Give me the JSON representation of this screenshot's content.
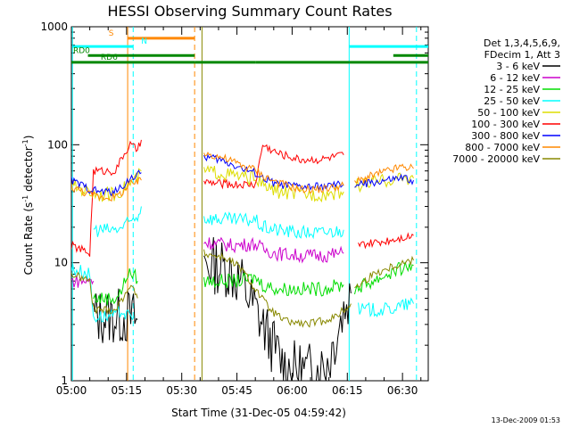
{
  "chart_data": {
    "type": "line",
    "title": "HESSI Observing Summary Count Rates",
    "xlabel": "Start Time (31-Dec-05 04:59:42)",
    "ylabel_main": "Count Rate (s",
    "ylabel_sup1": "-1",
    "ylabel_mid": " detector",
    "ylabel_sup2": "-1",
    "ylabel_end": ")",
    "y_scale": "log",
    "ylim": [
      1,
      1000
    ],
    "xlim_minutes": [
      0,
      97
    ],
    "x_ticks": [
      {
        "t": 0,
        "label": "05:00"
      },
      {
        "t": 15,
        "label": "05:15"
      },
      {
        "t": 30,
        "label": "05:30"
      },
      {
        "t": 45,
        "label": "05:45"
      },
      {
        "t": 60,
        "label": "06:00"
      },
      {
        "t": 75,
        "label": "06:15"
      },
      {
        "t": 90,
        "label": "06:30"
      }
    ],
    "y_ticks": [
      {
        "v": 1,
        "label": "1"
      },
      {
        "v": 10,
        "label": "10"
      },
      {
        "v": 100,
        "label": "100"
      },
      {
        "v": 1000,
        "label": "1000"
      }
    ],
    "legend_header": [
      "Det 1,3,4,5,6,9,",
      "FDecim 1, Att 3"
    ],
    "series": [
      {
        "name": "3 - 6 keV",
        "color": "#000000",
        "segments": [
          [
            [
              6,
              3.5
            ],
            [
              15,
              3.5
            ],
            [
              18,
              3.3
            ]
          ],
          [
            [
              36,
              10
            ],
            [
              42,
              9
            ],
            [
              46,
              7
            ],
            [
              50,
              4
            ],
            [
              54,
              2.2
            ],
            [
              58,
              1.3
            ],
            [
              64,
              1.2
            ],
            [
              68,
              1.3
            ],
            [
              70,
              1.5
            ],
            [
              72,
              2.5
            ],
            [
              74,
              4
            ],
            [
              76,
              5.5
            ]
          ]
        ]
      },
      {
        "name": "6 - 12 keV",
        "color": "#cc00cc",
        "segments": [
          [
            [
              0,
              7
            ],
            [
              5,
              7
            ],
            [
              6,
              7
            ]
          ],
          [
            [
              36,
              15
            ],
            [
              44,
              14
            ],
            [
              50,
              14.5
            ],
            [
              52,
              13
            ],
            [
              56,
              12
            ],
            [
              62,
              11.5
            ],
            [
              68,
              11.5
            ],
            [
              74,
              12
            ]
          ]
        ]
      },
      {
        "name": "12 - 25 keV",
        "color": "#00dd00",
        "segments": [
          [
            [
              6,
              5
            ],
            [
              12,
              5
            ],
            [
              14,
              6
            ],
            [
              15,
              8
            ],
            [
              17,
              8
            ],
            [
              18,
              7
            ]
          ],
          [
            [
              36,
              7
            ],
            [
              46,
              7
            ],
            [
              50,
              7.5
            ],
            [
              52,
              6.5
            ],
            [
              56,
              6
            ],
            [
              62,
              6
            ],
            [
              68,
              6
            ],
            [
              74,
              6.5
            ]
          ],
          [
            [
              77,
              6
            ],
            [
              82,
              7
            ],
            [
              86,
              8
            ],
            [
              90,
              9
            ],
            [
              93,
              9.5
            ]
          ]
        ]
      },
      {
        "name": "25 - 50 keV",
        "color": "#00ffff",
        "segments": [
          [
            [
              0,
              9
            ],
            [
              5,
              8
            ],
            [
              6,
              3.5
            ],
            [
              12,
              3.5
            ],
            [
              14,
              4
            ],
            [
              15,
              3.5
            ],
            [
              17,
              3.5
            ]
          ],
          [
            [
              6,
              19
            ],
            [
              12,
              19
            ],
            [
              14,
              20
            ],
            [
              16,
              22
            ],
            [
              18,
              25
            ],
            [
              19,
              30
            ]
          ],
          [
            [
              36,
              24
            ],
            [
              44,
              23
            ],
            [
              50,
              23
            ],
            [
              52,
              20
            ],
            [
              56,
              19
            ],
            [
              62,
              18
            ],
            [
              68,
              18
            ],
            [
              74,
              19
            ]
          ],
          [
            [
              78,
              4
            ],
            [
              86,
              4
            ],
            [
              92,
              4.5
            ],
            [
              93,
              4.5
            ]
          ]
        ]
      },
      {
        "name": "50 - 100 keV",
        "color": "#dddd00",
        "segments": [
          [
            [
              0,
              45
            ],
            [
              5,
              40
            ],
            [
              8,
              38
            ],
            [
              12,
              38
            ],
            [
              14,
              42
            ],
            [
              16,
              48
            ],
            [
              18,
              52
            ],
            [
              19,
              60
            ]
          ],
          [
            [
              36,
              60
            ],
            [
              40,
              58
            ],
            [
              44,
              55
            ],
            [
              48,
              52
            ],
            [
              50,
              54
            ],
            [
              52,
              45
            ],
            [
              56,
              40
            ],
            [
              62,
              38
            ],
            [
              68,
              38
            ],
            [
              74,
              40
            ]
          ],
          [
            [
              77,
              45
            ],
            [
              82,
              48
            ],
            [
              86,
              50
            ],
            [
              90,
              52
            ],
            [
              93,
              52
            ]
          ]
        ]
      },
      {
        "name": "100 - 300 keV",
        "color": "#ff0000",
        "segments": [
          [
            [
              0,
              14
            ],
            [
              5,
              12
            ],
            [
              6,
              60
            ],
            [
              12,
              60
            ],
            [
              14,
              80
            ],
            [
              16,
              100
            ],
            [
              18,
              90
            ],
            [
              19,
              110
            ]
          ],
          [
            [
              36,
              48
            ],
            [
              44,
              46
            ],
            [
              50,
              46
            ],
            [
              52,
              100
            ],
            [
              56,
              85
            ],
            [
              62,
              75
            ],
            [
              68,
              75
            ],
            [
              74,
              82
            ]
          ],
          [
            [
              78,
              14
            ],
            [
              84,
              15
            ],
            [
              90,
              16.5
            ],
            [
              93,
              17
            ]
          ]
        ]
      },
      {
        "name": "300 - 800 keV",
        "color": "#0000ff",
        "segments": [
          [
            [
              0,
              50
            ],
            [
              5,
              42
            ],
            [
              8,
              40
            ],
            [
              12,
              40
            ],
            [
              14,
              45
            ],
            [
              16,
              52
            ],
            [
              18,
              55
            ],
            [
              19,
              58
            ]
          ],
          [
            [
              36,
              80
            ],
            [
              40,
              75
            ],
            [
              44,
              68
            ],
            [
              48,
              60
            ],
            [
              50,
              58
            ],
            [
              52,
              52
            ],
            [
              56,
              46
            ],
            [
              62,
              44
            ],
            [
              68,
              44
            ],
            [
              74,
              46
            ]
          ],
          [
            [
              77,
              45
            ],
            [
              82,
              48
            ],
            [
              86,
              50
            ],
            [
              90,
              52
            ],
            [
              93,
              50
            ]
          ]
        ]
      },
      {
        "name": "800 - 7000 keV",
        "color": "#ff8800",
        "segments": [
          [
            [
              0,
              44
            ],
            [
              5,
              38
            ],
            [
              8,
              36
            ],
            [
              12,
              36
            ],
            [
              14,
              40
            ],
            [
              16,
              46
            ],
            [
              18,
              48
            ],
            [
              19,
              50
            ]
          ],
          [
            [
              36,
              85
            ],
            [
              40,
              80
            ],
            [
              44,
              72
            ],
            [
              48,
              64
            ],
            [
              50,
              62
            ],
            [
              52,
              55
            ],
            [
              56,
              48
            ],
            [
              62,
              42
            ],
            [
              68,
              42
            ],
            [
              74,
              45
            ]
          ],
          [
            [
              77,
              48
            ],
            [
              82,
              55
            ],
            [
              86,
              60
            ],
            [
              90,
              65
            ],
            [
              93,
              63
            ]
          ]
        ]
      },
      {
        "name": "7000 - 20000 keV",
        "color": "#888800",
        "segments": [
          [
            [
              0,
              8
            ],
            [
              5,
              7
            ],
            [
              6,
              4
            ],
            [
              12,
              4
            ],
            [
              14,
              5
            ],
            [
              15,
              6
            ],
            [
              17,
              6
            ],
            [
              18,
              5
            ]
          ],
          [
            [
              36,
              12
            ],
            [
              42,
              11
            ],
            [
              46,
              9
            ],
            [
              50,
              6
            ],
            [
              54,
              4
            ],
            [
              58,
              3.2
            ],
            [
              64,
              3
            ],
            [
              68,
              3.2
            ],
            [
              72,
              3.5
            ],
            [
              76,
              4.5
            ]
          ],
          [
            [
              77,
              6
            ],
            [
              82,
              8
            ],
            [
              86,
              9
            ],
            [
              90,
              10
            ],
            [
              93,
              10.5
            ]
          ]
        ]
      }
    ],
    "vertical_markers": [
      {
        "t": 0.3,
        "color": "#00ffff",
        "style": "solid"
      },
      {
        "t": 15.3,
        "color": "#ff8800",
        "style": "solid"
      },
      {
        "t": 16.8,
        "color": "#00ffff",
        "style": "dashed"
      },
      {
        "t": 33.5,
        "color": "#ff8800",
        "style": "dashed"
      },
      {
        "t": 35.5,
        "color": "#888800",
        "style": "solid"
      },
      {
        "t": 75.5,
        "color": "#00ffff",
        "style": "solid"
      },
      {
        "t": 93.8,
        "color": "#00ffff",
        "style": "dashed"
      }
    ],
    "flag_bands": [
      {
        "label": "S",
        "color": "#ff8800",
        "level": 800,
        "label_t": 12.0,
        "label_side": "left",
        "segments": [
          [
            15.3,
            33.5
          ]
        ]
      },
      {
        "label": "N",
        "color": "#00ffff",
        "level": 680,
        "label_t": 18.5,
        "label_side": "right",
        "segments": [
          [
            0.3,
            16.8
          ],
          [
            75.5,
            97
          ]
        ]
      },
      {
        "label": "RD0",
        "color": "#008800",
        "level": 570,
        "label_t": 0.0,
        "label_side": "right",
        "segments": [
          [
            4.5,
            33.5
          ],
          [
            87.5,
            97
          ]
        ]
      },
      {
        "label": "RD6",
        "color": "#008800",
        "level": 500,
        "label_t": 7.5,
        "label_side": "right",
        "segments": [
          [
            0,
            33.5
          ],
          [
            33.5,
            50
          ],
          [
            50,
            75.5
          ],
          [
            75.5,
            97
          ]
        ]
      }
    ]
  },
  "footer_date": "13-Dec-2009 01:53"
}
